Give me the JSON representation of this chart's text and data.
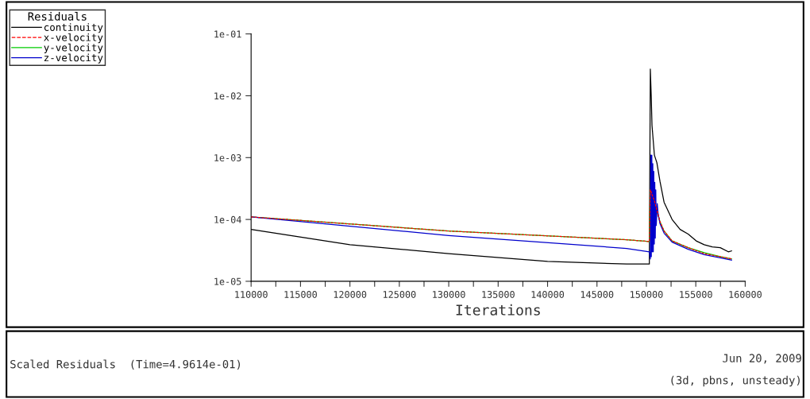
{
  "chart_data": {
    "type": "line",
    "xlabel": "Iterations",
    "legend_title": "Residuals",
    "legend": "top left",
    "log": "y",
    "grid": false,
    "xlim": [
      110000,
      160000
    ],
    "xticks": [
      110000,
      {
        "value": 112500,
        "label": null
      },
      115000,
      {
        "value": 117500,
        "label": null
      },
      120000,
      {
        "value": 122500,
        "label": null
      },
      125000,
      {
        "value": 127500,
        "label": null
      },
      130000,
      {
        "value": 132500,
        "label": null
      },
      135000,
      {
        "value": 137500,
        "label": null
      },
      140000,
      {
        "value": 142500,
        "label": null
      },
      145000,
      {
        "value": 147500,
        "label": null
      },
      150000,
      {
        "value": 152500,
        "label": null
      },
      155000,
      {
        "value": 157500,
        "label": null
      },
      160000
    ],
    "ylim": [
      1e-05,
      0.1
    ],
    "yticks": [
      {
        "value": 1e-05,
        "label": "1e-05"
      },
      {
        "value": 0.0001,
        "label": "1e-04"
      },
      {
        "value": 0.001,
        "label": "1e-03"
      },
      {
        "value": 0.01,
        "label": "1e-02"
      },
      {
        "value": 0.1,
        "label": "1e-01"
      }
    ],
    "annotations": [
      "Scaled Residuals  (Time=4.9614e-01)",
      "Jun 20, 2009",
      "(3d, pbns, unsteady)"
    ],
    "series": [
      {
        "name": "continuity",
        "color": "#000000",
        "x": [
          110000,
          120000,
          130000,
          140000,
          148000,
          150300,
          150400,
          150490,
          150570,
          150810,
          151060,
          151380,
          151790,
          152600,
          153410,
          154230,
          155040,
          155850,
          156670,
          157480,
          158290,
          158620
        ],
        "values": [
          6.9e-05,
          3.9e-05,
          2.8e-05,
          2.1e-05,
          1.9e-05,
          1.9e-05,
          0.027,
          0.01,
          0.0033,
          0.0011,
          0.00083,
          0.00041,
          0.00019,
          0.0001,
          6.9e-05,
          5.8e-05,
          4.5e-05,
          3.9e-05,
          3.6e-05,
          3.5e-05,
          3e-05,
          3.1e-05
        ]
      },
      {
        "name": "x-velocity",
        "color": "#ff0000",
        "line_style": "dashed",
        "x": [
          110000,
          130000,
          148000,
          150300,
          150400,
          150810,
          151380,
          151790,
          152600,
          154230,
          155850,
          157480,
          158620
        ],
        "values": [
          0.00011,
          6.5e-05,
          4.7e-05,
          4.4e-05,
          0.0003,
          0.0002,
          9.2e-05,
          6.5e-05,
          4.5e-05,
          3.5e-05,
          2.8e-05,
          2.5e-05,
          2.3e-05
        ]
      },
      {
        "name": "y-velocity",
        "color": "#00cc00",
        "x": [
          110000,
          130000,
          148000,
          150300,
          150400,
          151380,
          151790,
          152600,
          154230,
          155850,
          157480,
          158620
        ],
        "values": [
          0.00011,
          6.5e-05,
          4.7e-05,
          4.4e-05,
          0.0003,
          9.2e-05,
          6.5e-05,
          4.5e-05,
          3.5e-05,
          2.9e-05,
          2.5e-05,
          2.3e-05
        ]
      },
      {
        "name": "z-velocity",
        "color": "#0000cc",
        "x": [
          110000,
          130000,
          148000,
          150300,
          150400,
          150450,
          150500,
          150550,
          150600,
          150650,
          150700,
          150750,
          150800,
          150850,
          150900,
          150950,
          151000,
          151100,
          151200,
          151380,
          151790,
          152600,
          154230,
          155850,
          157480,
          158620
        ],
        "values": [
          0.00011,
          5.5e-05,
          3.4e-05,
          3e-05,
          2.3e-05,
          0.0011,
          2.5e-05,
          0.0011,
          3e-05,
          0.0008,
          3e-05,
          0.0006,
          4e-05,
          0.0004,
          5e-05,
          0.0003,
          8e-05,
          0.00018,
          0.00012,
          8.5e-05,
          6e-05,
          4.3e-05,
          3.3e-05,
          2.7e-05,
          2.4e-05,
          2.2e-05
        ]
      }
    ]
  }
}
